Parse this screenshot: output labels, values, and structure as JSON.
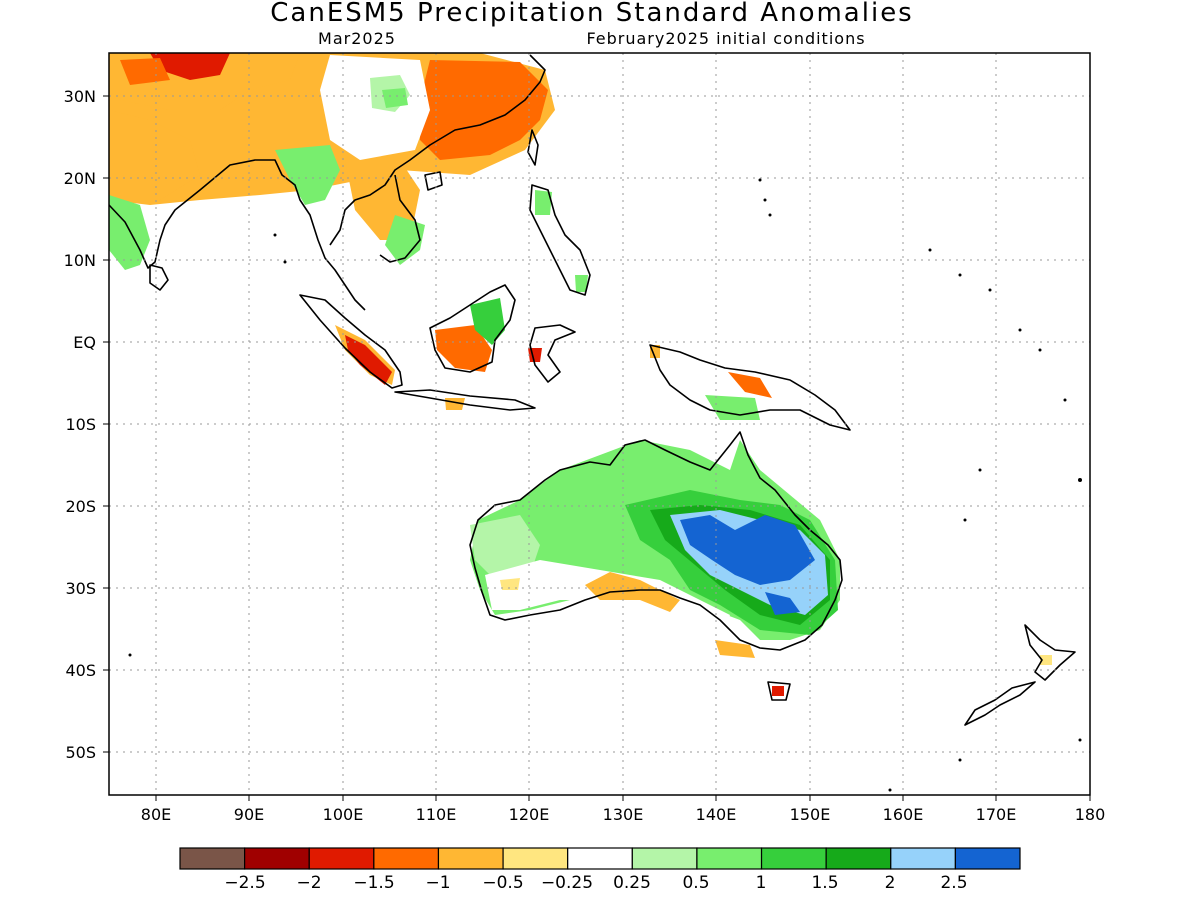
{
  "title": "CanESM5 Precipitation Standard Anomalies",
  "subtitle_left": "Mar2025",
  "subtitle_right": "February2025 initial conditions",
  "map": {
    "lon_range": [
      75,
      180
    ],
    "lat_range": [
      -55,
      35
    ],
    "lon_ticks": [
      "80E",
      "90E",
      "100E",
      "110E",
      "120E",
      "130E",
      "140E",
      "150E",
      "160E",
      "170E",
      "180"
    ],
    "lat_ticks": [
      "30N",
      "20N",
      "10N",
      "EQ",
      "10S",
      "20S",
      "30S",
      "40S",
      "50S"
    ],
    "grid": "dotted"
  },
  "colorbar": {
    "colors": [
      "#7a5548",
      "#a00000",
      "#e01a00",
      "#ff6a00",
      "#ffb733",
      "#ffe680",
      "#ffffff",
      "#b4f5a8",
      "#78ee6e",
      "#36cf3c",
      "#16aa1a",
      "#96d2fa",
      "#1464d2"
    ],
    "labels": [
      "−2.5",
      "−2",
      "−1.5",
      "−1",
      "−0.5",
      "−0.25",
      "0.25",
      "0.5",
      "1",
      "1.5",
      "2",
      "2.5"
    ]
  }
}
